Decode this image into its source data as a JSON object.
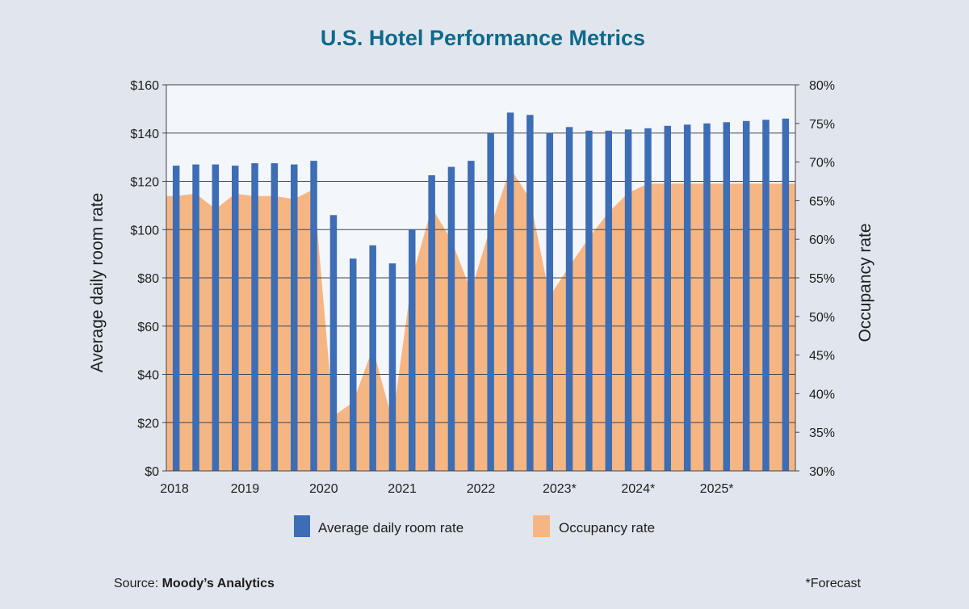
{
  "footer": {
    "source_prefix": "Source: ",
    "source_name": "Moody’s Analytics",
    "note": "*Forecast"
  },
  "colors": {
    "background": "#e1e6ee",
    "plot_background": "#f3f6fa",
    "bar": "#3d6db5",
    "area": "#f6b683",
    "title": "#0e6a8c",
    "text": "#1d1d1d",
    "grid": "#444444"
  },
  "chart_data": {
    "type": "bar",
    "title": "U.S. Hotel Performance Metrics",
    "ylabel": "Average daily room rate",
    "y2label": "Occupancy rate",
    "ylim": [
      0,
      160
    ],
    "y2lim": [
      30,
      80
    ],
    "yticks": [
      "$0",
      "$20",
      "$40",
      "$60",
      "$80",
      "$100",
      "$120",
      "$140",
      "$160"
    ],
    "y2ticks": [
      "30%",
      "35%",
      "40%",
      "45%",
      "50%",
      "55%",
      "60%",
      "65%",
      "70%",
      "75%",
      "80%"
    ],
    "xticks": [
      "2018",
      "2019",
      "2020",
      "2021",
      "2022",
      "2023*",
      "2024*",
      "2025*"
    ],
    "grid": true,
    "legend_position": "bottom",
    "x": [
      "2018 Q1",
      "2018 Q2",
      "2018 Q3",
      "2018 Q4",
      "2019 Q1",
      "2019 Q2",
      "2019 Q3",
      "2019 Q4",
      "2020 Q1",
      "2020 Q2",
      "2020 Q3",
      "2020 Q4",
      "2021 Q1",
      "2021 Q2",
      "2021 Q3",
      "2021 Q4",
      "2022 Q1",
      "2022 Q2",
      "2022 Q3",
      "2022 Q4",
      "2023 Q1",
      "2023 Q2",
      "2023 Q3",
      "2023 Q4",
      "2024 Q1",
      "2024 Q2",
      "2024 Q3",
      "2024 Q4",
      "2025 Q1",
      "2025 Q2",
      "2025 Q3",
      "2025 Q4"
    ],
    "series": [
      {
        "name": "Average daily room rate",
        "type": "bar",
        "axis": "left",
        "values": [
          126.5,
          127,
          127,
          126.5,
          127.5,
          127.5,
          127,
          128.5,
          106,
          88,
          93.5,
          86,
          100,
          122.5,
          126,
          128.5,
          140,
          148.5,
          147.5,
          140,
          142.5,
          141,
          141,
          141.5,
          142,
          143,
          143.5,
          144,
          144.5,
          145,
          145.5,
          146
        ]
      },
      {
        "name": "Occupancy rate",
        "type": "area",
        "axis": "right",
        "values": [
          65.6,
          65.9,
          63.9,
          65.9,
          65.6,
          65.6,
          65.2,
          66.5,
          37.1,
          38.9,
          45.9,
          36.5,
          55.0,
          64.1,
          59.9,
          53.3,
          61.7,
          69.2,
          65.2,
          52.6,
          56.5,
          60.2,
          63.5,
          66.0,
          67.2,
          67.2,
          67.2,
          67.2,
          67.2,
          67.2,
          67.2,
          67.2
        ]
      }
    ]
  }
}
